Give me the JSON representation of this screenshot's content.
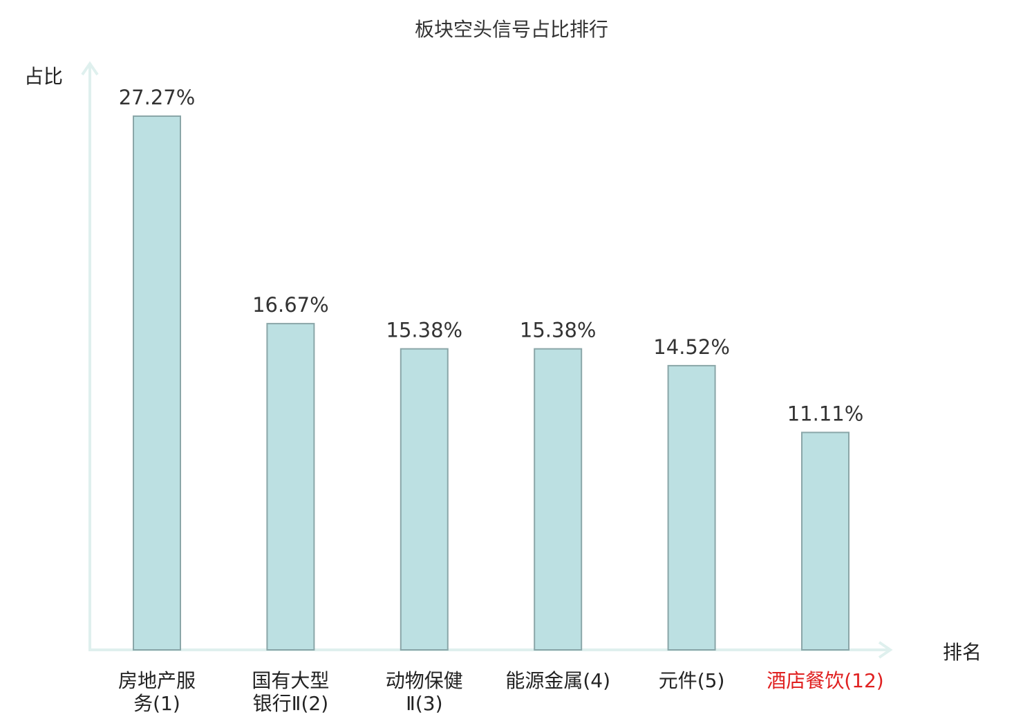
{
  "chart_data": {
    "type": "bar",
    "title": "板块空头信号占比排行",
    "ylabel": "占比",
    "xlabel": "排名",
    "categories": [
      [
        "房地产服",
        "务(1)"
      ],
      [
        "国有大型",
        "银行Ⅱ(2)"
      ],
      [
        "动物保健",
        "Ⅱ(3)"
      ],
      [
        "能源金属(4)"
      ],
      [
        "元件(5)"
      ],
      [
        "酒店餐饮(12)"
      ]
    ],
    "values": [
      27.27,
      16.67,
      15.38,
      15.38,
      14.52,
      11.11
    ],
    "value_labels": [
      "27.27%",
      "16.67%",
      "15.38%",
      "15.38%",
      "14.52%",
      "11.11%"
    ],
    "highlight_index": 5,
    "ylim": [
      0,
      27.27
    ],
    "grid": false
  },
  "colors": {
    "bar_fill": "#bce0e2",
    "bar_stroke": "#8aa6a8",
    "axis": "#dff0ee",
    "text": "#333333",
    "highlight_text": "#e02020"
  }
}
